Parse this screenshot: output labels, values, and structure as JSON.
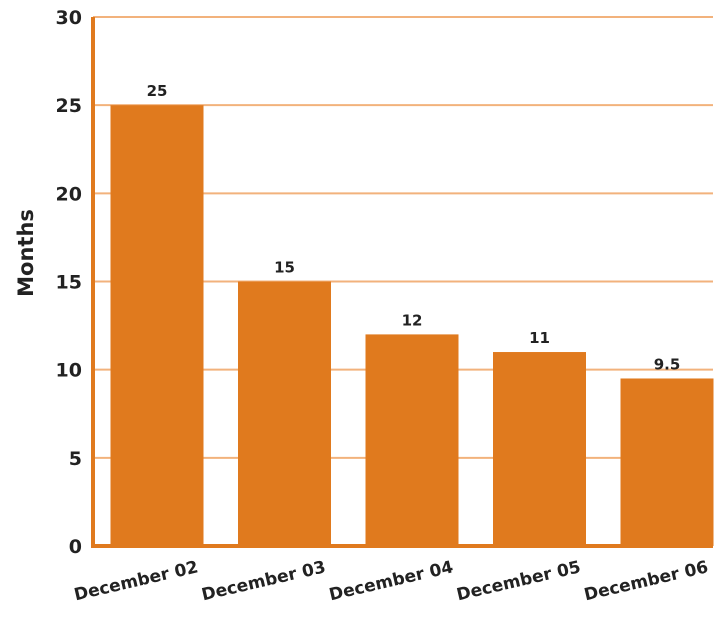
{
  "chart_data": {
    "type": "bar",
    "categories": [
      "December 02",
      "December 03",
      "December 04",
      "December 05",
      "December 06"
    ],
    "values": [
      25,
      15,
      12,
      11,
      9.5
    ],
    "value_labels": [
      "25",
      "15",
      "12",
      "11",
      "9.5"
    ],
    "title": "",
    "xlabel": "",
    "ylabel": "Months",
    "ylim": [
      0,
      30
    ],
    "yticks": [
      0,
      5,
      10,
      15,
      20,
      25,
      30
    ],
    "grid": true,
    "legend": "none",
    "colors": {
      "bar": "#E07A1E",
      "grid": "#F2B27C",
      "axis": "#E07A1E",
      "text": "#222222"
    }
  }
}
